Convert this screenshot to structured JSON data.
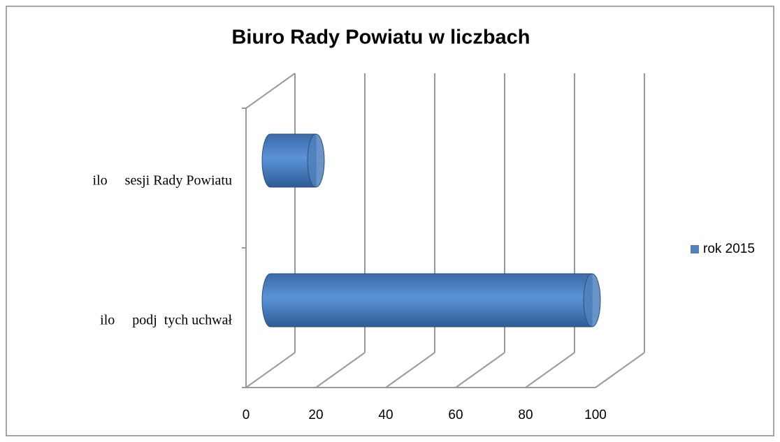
{
  "chart_data": {
    "type": "bar3d",
    "title": "Biuro Rady Powiatu w liczbach",
    "categories": [
      "ilo     sesji Rady Powiatu",
      "ilo     podj  tych uchwał"
    ],
    "series": [
      {
        "name": "rok 2015",
        "color": "#4f81bd",
        "values": [
          13,
          92
        ]
      }
    ],
    "xlim": [
      0,
      100
    ],
    "xticks": [
      0,
      20,
      40,
      60,
      80,
      100
    ],
    "grid": true,
    "legend": "right"
  }
}
